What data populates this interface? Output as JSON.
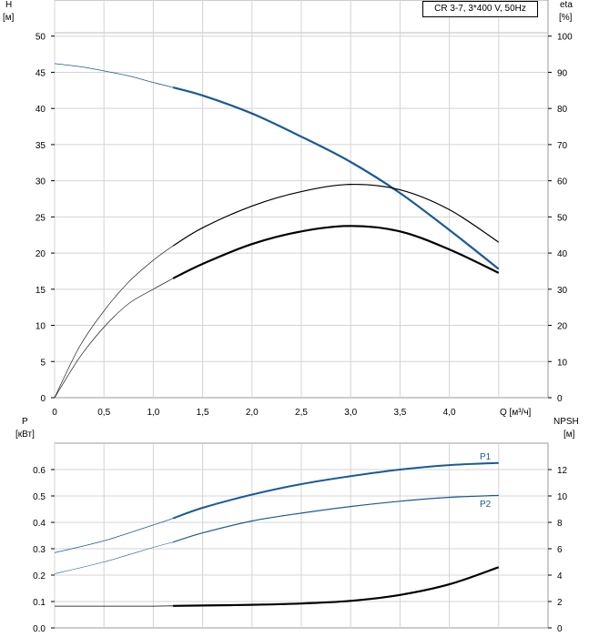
{
  "chart_data": [
    {
      "type": "line",
      "title": "",
      "legend": "CR 3-7, 3*400 V, 50Hz",
      "ylabel_left": "H",
      "ylabel_left_unit": "[м]",
      "ylabel_right": "eta",
      "ylabel_right_unit": "[%]",
      "xlabel": "Q [м³/ч]",
      "xlim": [
        0,
        5
      ],
      "ylim_left": [
        0,
        55
      ],
      "ylim_right": [
        0,
        110
      ],
      "grid": true,
      "x_ticks": [
        0,
        0.5,
        1.0,
        1.5,
        2.0,
        2.5,
        3.0,
        3.5,
        4.0
      ],
      "x_tick_labels": [
        "0",
        "0,5",
        "1,0",
        "1,5",
        "2,0",
        "2,5",
        "3,0",
        "3,5",
        "4,0"
      ],
      "y_left_ticks": [
        0,
        5,
        10,
        15,
        20,
        25,
        30,
        35,
        40,
        45,
        50
      ],
      "y_right_ticks": [
        0,
        10,
        20,
        30,
        40,
        50,
        60,
        70,
        80,
        90,
        100
      ],
      "series": [
        {
          "axis": "left",
          "color": "#1a5a96",
          "x": [
            0,
            0.25,
            0.5,
            0.75,
            1.0,
            1.2,
            1.5,
            2.0,
            2.5,
            3.0,
            3.5,
            4.0,
            4.5
          ],
          "y": [
            46.2,
            45.8,
            45.2,
            44.5,
            43.6,
            42.9,
            41.8,
            39.3,
            36.1,
            32.6,
            28.3,
            23.2,
            17.8
          ]
        },
        {
          "axis": "right",
          "color": "#000000",
          "x": [
            0,
            0.25,
            0.5,
            0.75,
            1.0,
            1.2,
            1.5,
            2.0,
            2.5,
            3.0,
            3.5,
            4.0,
            4.5
          ],
          "y": [
            0,
            14,
            24,
            32,
            38,
            42,
            47,
            53,
            57,
            59,
            57.5,
            52,
            43
          ]
        },
        {
          "axis": "right",
          "color": "#000000",
          "x": [
            0,
            0.25,
            0.5,
            0.75,
            1.0,
            1.2,
            1.5,
            2.0,
            2.5,
            3.0,
            3.5,
            4.0,
            4.5
          ],
          "y": [
            0,
            11,
            19.5,
            26,
            30,
            33,
            37,
            42.5,
            46,
            47.5,
            46,
            41,
            34.5
          ]
        }
      ]
    },
    {
      "type": "line",
      "title": "",
      "ylabel_left": "P",
      "ylabel_left_unit": "[кВт]",
      "ylabel_right": "NPSH",
      "ylabel_right_unit": "[м]",
      "xlim": [
        0,
        5
      ],
      "ylim_left": [
        0,
        0.7
      ],
      "ylim_right": [
        0,
        14
      ],
      "grid": true,
      "y_left_ticks": [
        0.0,
        0.1,
        0.2,
        0.3,
        0.4,
        0.5,
        0.6
      ],
      "y_left_tick_labels": [
        "0.0",
        "0.1",
        "0.2",
        "0.3",
        "0.4",
        "0.5",
        "0.6"
      ],
      "y_right_ticks": [
        0,
        2,
        4,
        6,
        8,
        10,
        12
      ],
      "series": [
        {
          "name": "P1",
          "axis": "left",
          "color": "#1a5a96",
          "x": [
            0,
            0.5,
            1.0,
            1.2,
            1.5,
            2.0,
            2.5,
            3.0,
            3.5,
            4.0,
            4.5
          ],
          "y": [
            0.285,
            0.33,
            0.39,
            0.415,
            0.455,
            0.505,
            0.545,
            0.575,
            0.6,
            0.617,
            0.625
          ]
        },
        {
          "name": "P2",
          "axis": "left",
          "color": "#1a5a96",
          "x": [
            0,
            0.5,
            1.0,
            1.2,
            1.5,
            2.0,
            2.5,
            3.0,
            3.5,
            4.0,
            4.5
          ],
          "y": [
            0.205,
            0.25,
            0.305,
            0.325,
            0.36,
            0.405,
            0.435,
            0.46,
            0.48,
            0.495,
            0.502
          ]
        },
        {
          "axis": "right",
          "color": "#000000",
          "x": [
            0,
            0.5,
            1.0,
            1.2,
            1.5,
            2.0,
            2.5,
            3.0,
            3.5,
            4.0,
            4.5
          ],
          "y": [
            1.65,
            1.65,
            1.65,
            1.67,
            1.7,
            1.75,
            1.85,
            2.05,
            2.5,
            3.3,
            4.6
          ]
        }
      ]
    }
  ]
}
